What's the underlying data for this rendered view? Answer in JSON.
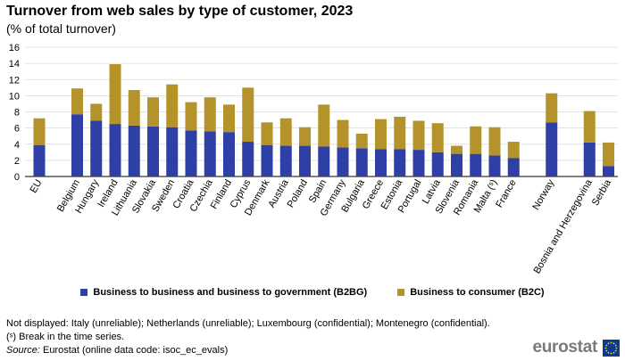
{
  "title": "Turnover from web sales by type of customer, 2023",
  "subtitle": "(% of total turnover)",
  "colors": {
    "b2bg": "#2e3fa6",
    "b2c": "#b5932b",
    "grid": "#d9d9d9"
  },
  "legend": [
    {
      "label": "Business to business and business to government  (B2BG)",
      "color": "#2e3fa6"
    },
    {
      "label": "Business to consumer (B2C)",
      "color": "#b5932b"
    }
  ],
  "notes": {
    "not_displayed": "Not displayed: Italy (unreliable); Netherlands (unreliable); Luxembourg (confidential); Montenegro (confidential).",
    "break": "(ˢ) Break in the time series.",
    "source_label": "Source:",
    "source_text": " Eurostat (online data code: isoc_ec_evals)"
  },
  "logo": {
    "text": "eurostat",
    "icon": "eu-flag-icon"
  },
  "chart_data": {
    "type": "bar",
    "stacked": true,
    "ylim": [
      0,
      16
    ],
    "yticks": [
      0,
      2,
      4,
      6,
      8,
      10,
      12,
      14,
      16
    ],
    "grid": true,
    "legend_position": "bottom",
    "categories": [
      "EU",
      "Belgium",
      "Hungary",
      "Ireland",
      "Lithuania",
      "Slovakia",
      "Sweden",
      "Croatia",
      "Czechia",
      "Finland",
      "Cyprus",
      "Denmark",
      "Austria",
      "Poland",
      "Spain",
      "Germany",
      "Bulgaria",
      "Greece",
      "Estonia",
      "Portugal",
      "Latvia",
      "Slovenia",
      "Romania",
      "Malta (ˢ)",
      "France",
      "Norway",
      "Bosnia and Herzegovina",
      "Serbia"
    ],
    "series": [
      {
        "name": "Business to business and business to government  (B2BG)",
        "color": "#2e3fa6",
        "values": [
          3.9,
          7.7,
          6.9,
          6.5,
          6.3,
          6.2,
          6.1,
          5.7,
          5.6,
          5.5,
          4.3,
          3.9,
          3.8,
          3.8,
          3.7,
          3.6,
          3.5,
          3.4,
          3.4,
          3.3,
          3.0,
          2.8,
          2.8,
          2.6,
          2.3,
          6.7,
          4.2,
          1.3
        ]
      },
      {
        "name": "Business to consumer (B2C)",
        "color": "#b5932b",
        "values": [
          3.3,
          3.2,
          2.1,
          7.4,
          4.4,
          3.6,
          5.3,
          3.5,
          4.2,
          3.4,
          6.7,
          2.8,
          3.4,
          2.3,
          5.2,
          3.4,
          1.8,
          3.7,
          4.0,
          3.6,
          3.6,
          1.0,
          3.4,
          3.5,
          2.0,
          3.6,
          3.9,
          2.9
        ]
      }
    ]
  }
}
